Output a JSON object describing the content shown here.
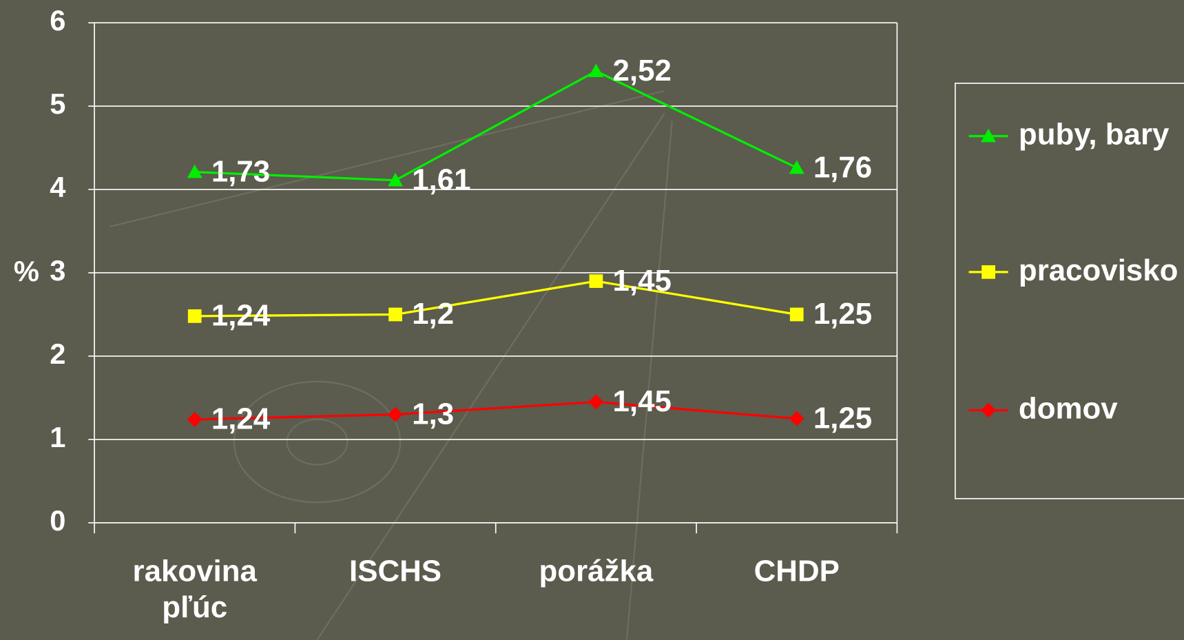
{
  "chart_data": {
    "type": "line",
    "stacked": true,
    "y_label": "%",
    "categories": [
      "rakovina pľúc",
      "ISCHS",
      "porážka",
      "CHDP"
    ],
    "series": [
      {
        "name": "domov",
        "color": "#ff0000",
        "marker": "diamond",
        "values": [
          1.24,
          1.3,
          1.45,
          1.25
        ],
        "value_labels": [
          "1,24",
          "1,3",
          "1,45",
          "1,25"
        ]
      },
      {
        "name": "pracovisko",
        "color": "#ffff00",
        "marker": "square",
        "values": [
          1.24,
          1.2,
          1.45,
          1.25
        ],
        "value_labels": [
          "1,24",
          "1,2",
          "1,45",
          "1,25"
        ]
      },
      {
        "name": "puby, bary",
        "color": "#00ee00",
        "marker": "triangle",
        "values": [
          1.73,
          1.61,
          2.52,
          1.76
        ],
        "value_labels": [
          "1,73",
          "1,61",
          "2,52",
          "1,76"
        ]
      }
    ],
    "ylim": [
      0,
      6
    ],
    "yticks": [
      0,
      1,
      2,
      3,
      4,
      5,
      6
    ],
    "grid": true,
    "legend": "right"
  }
}
